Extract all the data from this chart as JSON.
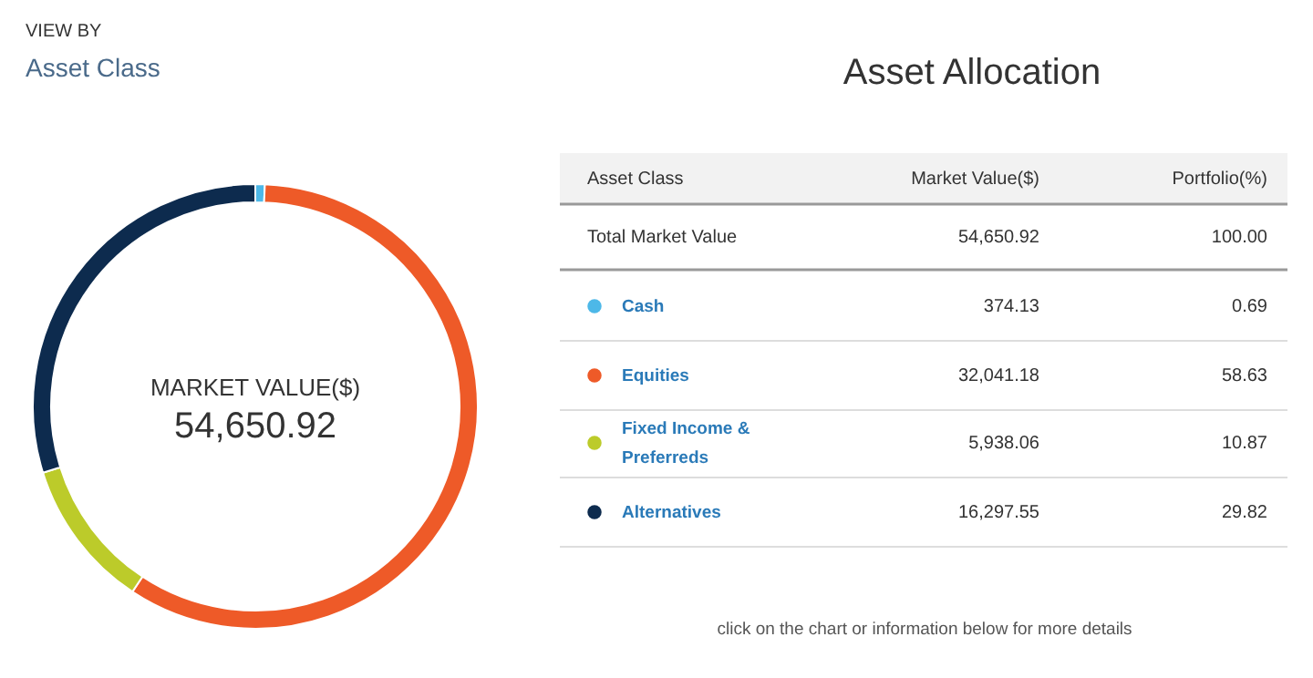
{
  "chart_data": {
    "type": "donut",
    "title": "Asset Allocation",
    "categories": [
      "Cash",
      "Equities",
      "Fixed Income & Preferreds",
      "Alternatives"
    ],
    "values": [
      374.13,
      32041.18,
      5938.06,
      16297.55
    ],
    "colors": [
      "#4db8e8",
      "#ee5a28",
      "#bccb2a",
      "#0d2b4e"
    ],
    "legend": "right",
    "value_labels": [
      "374.13",
      "32,041.18",
      "5,938.06",
      "16,297.55"
    ],
    "annotations": [
      "VIEW BY",
      "Asset Class",
      "MARKET VALUE($)",
      "54,650.92",
      "Asset Class",
      "Market Value($)",
      "Portfolio(%)",
      "Total Market Value",
      "54,650.92",
      "100.00",
      "0.69",
      "58.63",
      "10.87",
      "29.82",
      "click on the chart or information below for more details"
    ]
  }
}
